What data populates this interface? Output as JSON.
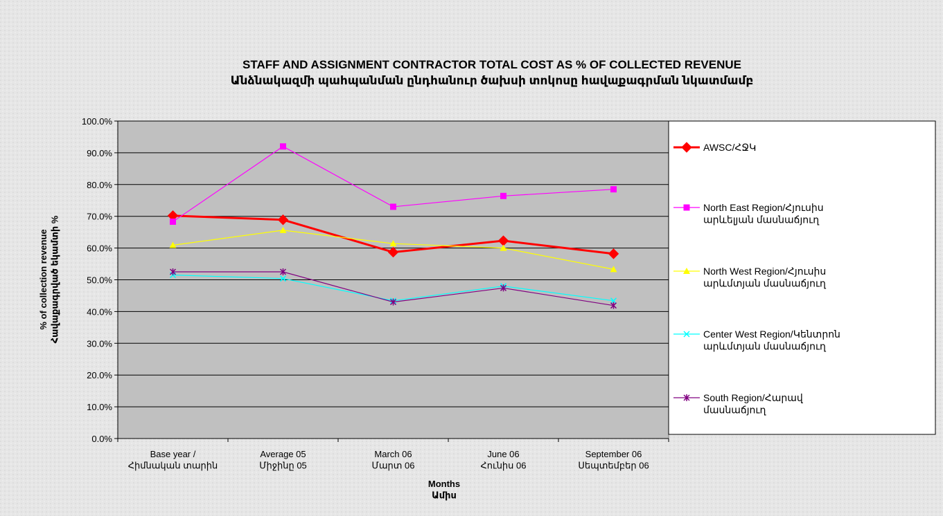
{
  "chart_data": {
    "type": "line",
    "title": "STAFF AND ASSIGNMENT CONTRACTOR TOTAL COST AS % OF COLLECTED REVENUE",
    "subtitle": "Անձնակազմի պահպանման ընդհանուր ծախսի տոկոսը հավաքագրման  նկատմամբ",
    "x_label": "Months\nԱմիս",
    "y_label": "% of collection revenue\nՀավաքագրված եկամտի %",
    "categories": [
      "Base year /\nՀիմնական տարին",
      "Average 05\nՄիջինը 05",
      "March 06\nՄարտ 06",
      "June 06\nՀունիս 06",
      "September 06\nՍեպտեմբեր 06"
    ],
    "series": [
      {
        "name": "AWSC/ՀՋԿ",
        "color": "#ff0000",
        "marker": "diamond",
        "values": [
          70.2,
          68.9,
          58.7,
          62.3,
          58.2
        ]
      },
      {
        "name": "North East Region/Հյուսիս\nարևելյան մասնաճյուղ",
        "color": "#ff00ff",
        "marker": "square",
        "values": [
          68.3,
          92.0,
          73.0,
          76.4,
          78.5
        ]
      },
      {
        "name": "North West Region/Հյուսիս\nարևմտյան մասնաճյուղ",
        "color": "#ffff00",
        "marker": "triangle",
        "values": [
          60.9,
          65.6,
          61.4,
          60.0,
          53.3
        ]
      },
      {
        "name": "Center West Region/Կենտրոն\nարևմտյան մասնաճյուղ",
        "color": "#00ffff",
        "marker": "x",
        "values": [
          51.5,
          50.4,
          43.4,
          48.0,
          43.4
        ]
      },
      {
        "name": "South Region/Հարավ\nմասնաճյուղ",
        "color": "#800080",
        "marker": "star",
        "values": [
          52.5,
          52.5,
          43.0,
          47.4,
          41.9
        ]
      }
    ],
    "ylim": [
      0,
      100
    ],
    "yticks": [
      {
        "value": 0,
        "label": "0.0%"
      },
      {
        "value": 10,
        "label": "10.0%"
      },
      {
        "value": 20,
        "label": "20.0%"
      },
      {
        "value": 30,
        "label": "30.0%"
      },
      {
        "value": 40,
        "label": "40.0%"
      },
      {
        "value": 50,
        "label": "50.0%"
      },
      {
        "value": 60,
        "label": "60.0%"
      },
      {
        "value": 70,
        "label": "70.0%"
      },
      {
        "value": 80,
        "label": "80.0%"
      },
      {
        "value": 90,
        "label": "90.0%"
      },
      {
        "value": 100,
        "label": "100.0%"
      }
    ],
    "grid": true,
    "legend": "right"
  }
}
